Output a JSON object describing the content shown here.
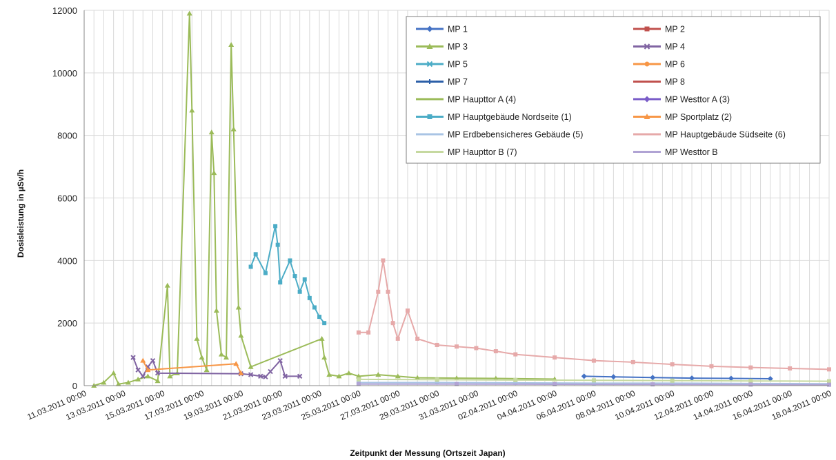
{
  "chart_data": {
    "type": "scatter",
    "title": "",
    "xlabel": "Zeitpunkt der Messung (Ortszeit Japan)",
    "ylabel": "Dosisleistung in µSv/h",
    "xlim": [
      "2011-03-11T00:00",
      "2011-04-18T00:00"
    ],
    "ylim": [
      0,
      12000
    ],
    "y_ticks": [
      0,
      2000,
      4000,
      6000,
      8000,
      10000,
      12000
    ],
    "x_ticks": [
      {
        "date": "2011-03-11T00:00",
        "label": "11.03.2011 00:00"
      },
      {
        "date": "2011-03-13T00:00",
        "label": "13.03.2011 00:00"
      },
      {
        "date": "2011-03-15T00:00",
        "label": "15.03.2011 00:00"
      },
      {
        "date": "2011-03-17T00:00",
        "label": "17.03.2011 00:00"
      },
      {
        "date": "2011-03-19T00:00",
        "label": "19.03.2011 00:00"
      },
      {
        "date": "2011-03-21T00:00",
        "label": "21.03.2011 00:00"
      },
      {
        "date": "2011-03-23T00:00",
        "label": "23.03.2011 00:00"
      },
      {
        "date": "2011-03-25T00:00",
        "label": "25.03.2011 00:00"
      },
      {
        "date": "2011-03-27T00:00",
        "label": "27.03.2011 00:00"
      },
      {
        "date": "2011-03-29T00:00",
        "label": "29.03.2011 00:00"
      },
      {
        "date": "2011-03-31T00:00",
        "label": "31.03.2011 00:00"
      },
      {
        "date": "2011-04-02T00:00",
        "label": "02.04.2011 00:00"
      },
      {
        "date": "2011-04-04T00:00",
        "label": "04.04.2011 00:00"
      },
      {
        "date": "2011-04-06T00:00",
        "label": "06.04.2011 00:00"
      },
      {
        "date": "2011-04-08T00:00",
        "label": "08.04.2011 00:00"
      },
      {
        "date": "2011-04-10T00:00",
        "label": "10.04.2011 00:00"
      },
      {
        "date": "2011-04-12T00:00",
        "label": "12.04.2011 00:00"
      },
      {
        "date": "2011-04-14T00:00",
        "label": "14.04.2011 00:00"
      },
      {
        "date": "2011-04-16T00:00",
        "label": "16.04.2011 00:00"
      },
      {
        "date": "2011-04-18T00:00",
        "label": "18.04.2011 00:00"
      }
    ],
    "grid": true,
    "legend_position": "top-right",
    "legend": [
      {
        "name": "MP 1",
        "color": "#4472c4",
        "marker": "diamond"
      },
      {
        "name": "MP 2",
        "color": "#c0504d",
        "marker": "square"
      },
      {
        "name": "MP 3",
        "color": "#9bbb59",
        "marker": "triangle"
      },
      {
        "name": "MP 4",
        "color": "#8064a2",
        "marker": "x"
      },
      {
        "name": "MP 5",
        "color": "#4bacc6",
        "marker": "x"
      },
      {
        "name": "MP 6",
        "color": "#f79646",
        "marker": "circle"
      },
      {
        "name": "MP 7",
        "color": "#2c5fa8",
        "marker": "plus"
      },
      {
        "name": "MP 8",
        "color": "#c0504d",
        "marker": "line"
      },
      {
        "name": "MP Haupttor A (4)",
        "color": "#9bbb59",
        "marker": "line"
      },
      {
        "name": "MP Westtor A (3)",
        "color": "#7a5cc8",
        "marker": "diamond"
      },
      {
        "name": "MP Hauptgebäude Nordseite (1)",
        "color": "#4bacc6",
        "marker": "square"
      },
      {
        "name": "MP Sportplatz (2)",
        "color": "#f79646",
        "marker": "triangle"
      },
      {
        "name": "MP Erdbebensicheres Gebäude (5)",
        "color": "#a9c4e4",
        "marker": "line"
      },
      {
        "name": "MP Hauptgebäude Südseite (6)",
        "color": "#e6a9a9",
        "marker": "line"
      },
      {
        "name": "MP Haupttor B (7)",
        "color": "#c6d9a0",
        "marker": "line"
      },
      {
        "name": "MP Westtor B",
        "color": "#b0a3d4",
        "marker": "line"
      }
    ],
    "series": [
      {
        "legend_index": 2,
        "color": "#9bbb59",
        "points": [
          [
            "2011-03-11T12:00",
            0
          ],
          [
            "2011-03-12T00:00",
            100
          ],
          [
            "2011-03-12T12:00",
            400
          ],
          [
            "2011-03-12T18:00",
            50
          ],
          [
            "2011-03-13T06:00",
            100
          ],
          [
            "2011-03-13T18:00",
            200
          ],
          [
            "2011-03-14T06:00",
            300
          ],
          [
            "2011-03-14T18:00",
            150
          ],
          [
            "2011-03-15T06:00",
            3200
          ],
          [
            "2011-03-15T09:00",
            300
          ],
          [
            "2011-03-15T18:00",
            400
          ],
          [
            "2011-03-16T09:00",
            11900
          ],
          [
            "2011-03-16T12:00",
            8800
          ],
          [
            "2011-03-16T18:00",
            1500
          ],
          [
            "2011-03-17T00:00",
            900
          ],
          [
            "2011-03-17T06:00",
            500
          ],
          [
            "2011-03-17T12:00",
            8100
          ],
          [
            "2011-03-17T15:00",
            6800
          ],
          [
            "2011-03-17T18:00",
            2400
          ],
          [
            "2011-03-18T00:00",
            1000
          ],
          [
            "2011-03-18T06:00",
            900
          ],
          [
            "2011-03-18T12:00",
            10900
          ],
          [
            "2011-03-18T15:00",
            8200
          ],
          [
            "2011-03-18T21:00",
            2500
          ],
          [
            "2011-03-19T00:00",
            1600
          ],
          [
            "2011-03-19T12:00",
            600
          ],
          [
            "2011-03-23T03:00",
            1500
          ],
          [
            "2011-03-23T06:00",
            900
          ],
          [
            "2011-03-23T12:00",
            350
          ],
          [
            "2011-03-24T00:00",
            300
          ],
          [
            "2011-03-24T12:00",
            400
          ],
          [
            "2011-03-25T00:00",
            300
          ],
          [
            "2011-03-26T00:00",
            350
          ],
          [
            "2011-03-27T00:00",
            300
          ],
          [
            "2011-03-28T00:00",
            250
          ],
          [
            "2011-03-30T00:00",
            240
          ],
          [
            "2011-04-01T00:00",
            230
          ],
          [
            "2011-04-04T00:00",
            210
          ]
        ]
      },
      {
        "legend_index": 3,
        "color": "#8064a2",
        "points": [
          [
            "2011-03-13T12:00",
            900
          ],
          [
            "2011-03-13T18:00",
            500
          ],
          [
            "2011-03-14T00:00",
            300
          ],
          [
            "2011-03-14T06:00",
            600
          ],
          [
            "2011-03-14T12:00",
            800
          ],
          [
            "2011-03-14T18:00",
            400
          ],
          [
            "2011-03-19T00:00",
            380
          ],
          [
            "2011-03-19T12:00",
            350
          ],
          [
            "2011-03-20T00:00",
            300
          ],
          [
            "2011-03-20T06:00",
            280
          ],
          [
            "2011-03-20T12:00",
            450
          ],
          [
            "2011-03-21T00:00",
            800
          ],
          [
            "2011-03-21T06:00",
            300
          ],
          [
            "2011-03-22T00:00",
            300
          ]
        ]
      },
      {
        "legend_index": 10,
        "color": "#4bacc6",
        "points": [
          [
            "2011-03-19T12:00",
            3800
          ],
          [
            "2011-03-19T18:00",
            4200
          ],
          [
            "2011-03-20T06:00",
            3600
          ],
          [
            "2011-03-20T18:00",
            5100
          ],
          [
            "2011-03-20T21:00",
            4500
          ],
          [
            "2011-03-21T00:00",
            3300
          ],
          [
            "2011-03-21T12:00",
            4000
          ],
          [
            "2011-03-21T18:00",
            3500
          ],
          [
            "2011-03-22T00:00",
            3000
          ],
          [
            "2011-03-22T06:00",
            3400
          ],
          [
            "2011-03-22T12:00",
            2800
          ],
          [
            "2011-03-22T18:00",
            2500
          ],
          [
            "2011-03-23T00:00",
            2200
          ],
          [
            "2011-03-23T06:00",
            2000
          ]
        ]
      },
      {
        "legend_index": 11,
        "color": "#f79646",
        "points": [
          [
            "2011-03-14T00:00",
            800
          ],
          [
            "2011-03-14T06:00",
            500
          ],
          [
            "2011-03-18T18:00",
            700
          ],
          [
            "2011-03-19T00:00",
            400
          ]
        ]
      },
      {
        "legend_index": 13,
        "color": "#e6a9a9",
        "points": [
          [
            "2011-03-25T00:00",
            1700
          ],
          [
            "2011-03-25T12:00",
            1700
          ],
          [
            "2011-03-26T00:00",
            3000
          ],
          [
            "2011-03-26T06:00",
            4000
          ],
          [
            "2011-03-26T12:00",
            3000
          ],
          [
            "2011-03-26T18:00",
            2000
          ],
          [
            "2011-03-27T00:00",
            1500
          ],
          [
            "2011-03-27T12:00",
            2400
          ],
          [
            "2011-03-28T00:00",
            1500
          ],
          [
            "2011-03-29T00:00",
            1300
          ],
          [
            "2011-03-30T00:00",
            1250
          ],
          [
            "2011-03-31T00:00",
            1200
          ],
          [
            "2011-04-01T00:00",
            1100
          ],
          [
            "2011-04-02T00:00",
            1000
          ],
          [
            "2011-04-04T00:00",
            900
          ],
          [
            "2011-04-06T00:00",
            800
          ],
          [
            "2011-04-08T00:00",
            750
          ],
          [
            "2011-04-10T00:00",
            680
          ],
          [
            "2011-04-12T00:00",
            620
          ],
          [
            "2011-04-14T00:00",
            580
          ],
          [
            "2011-04-16T00:00",
            550
          ],
          [
            "2011-04-18T00:00",
            520
          ]
        ]
      },
      {
        "legend_index": 0,
        "color": "#4472c4",
        "points": [
          [
            "2011-04-05T12:00",
            300
          ],
          [
            "2011-04-07T00:00",
            280
          ],
          [
            "2011-04-09T00:00",
            260
          ],
          [
            "2011-04-11T00:00",
            240
          ],
          [
            "2011-04-13T00:00",
            230
          ],
          [
            "2011-04-15T00:00",
            220
          ]
        ]
      },
      {
        "legend_index": 12,
        "color": "#a9c4e4",
        "points": [
          [
            "2011-03-25T00:00",
            100
          ],
          [
            "2011-03-29T00:00",
            100
          ],
          [
            "2011-04-02T00:00",
            90
          ],
          [
            "2011-04-06T00:00",
            80
          ],
          [
            "2011-04-10T00:00",
            80
          ],
          [
            "2011-04-14T00:00",
            70
          ],
          [
            "2011-04-18T00:00",
            60
          ]
        ]
      },
      {
        "legend_index": 14,
        "color": "#c6d9a0",
        "points": [
          [
            "2011-03-25T00:00",
            200
          ],
          [
            "2011-03-29T00:00",
            190
          ],
          [
            "2011-04-02T00:00",
            180
          ],
          [
            "2011-04-06T00:00",
            170
          ],
          [
            "2011-04-10T00:00",
            160
          ],
          [
            "2011-04-14T00:00",
            150
          ],
          [
            "2011-04-18T00:00",
            140
          ]
        ]
      },
      {
        "legend_index": 15,
        "color": "#b0a3d4",
        "points": [
          [
            "2011-03-25T00:00",
            50
          ],
          [
            "2011-03-30T00:00",
            50
          ],
          [
            "2011-04-04T00:00",
            45
          ],
          [
            "2011-04-09T00:00",
            40
          ],
          [
            "2011-04-14T00:00",
            35
          ],
          [
            "2011-04-18T00:00",
            30
          ]
        ]
      }
    ]
  }
}
